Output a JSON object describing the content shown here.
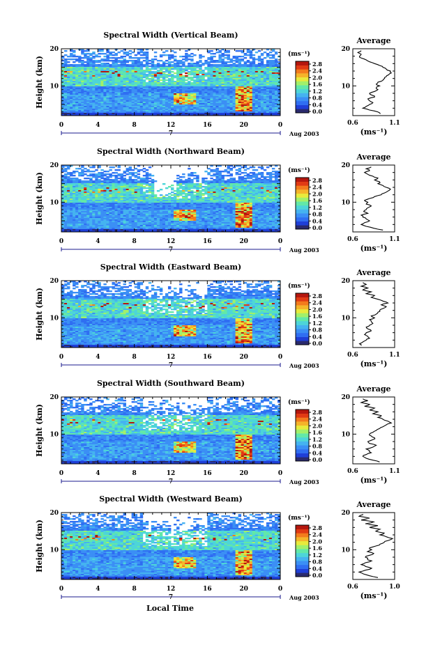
{
  "chart_data": [
    {
      "type": "heatmap",
      "title": "Spectral Width (Vertical Beam)",
      "ylabel": "Height (km)",
      "xlim": [
        0,
        24
      ],
      "ylim": [
        2,
        20
      ],
      "x_ticks": [
        "0",
        "4",
        "8",
        "12",
        "16",
        "20",
        "0"
      ],
      "y_ticks": [
        "10",
        "20"
      ],
      "date_marker": "7",
      "date_label": "Aug 2003",
      "colorbar": {
        "unit": "(ms⁻¹)",
        "ticks": [
          "2.8",
          "2.4",
          "2.0",
          "1.6",
          "1.2",
          "0.8",
          "0.4",
          "0.0"
        ]
      },
      "average": {
        "title": "Average",
        "xlabel": "(ms⁻¹)",
        "x_ticks": [
          "0.6",
          "1.1"
        ],
        "xlim": [
          0.6,
          1.1
        ],
        "y_ticks": [
          "10",
          "20"
        ],
        "profile": [
          [
            0.93,
            2.5
          ],
          [
            0.9,
            3
          ],
          [
            0.8,
            3.5
          ],
          [
            0.72,
            4
          ],
          [
            0.76,
            4.5
          ],
          [
            0.8,
            5
          ],
          [
            0.84,
            5.5
          ],
          [
            0.8,
            6
          ],
          [
            0.78,
            6.5
          ],
          [
            0.86,
            7
          ],
          [
            0.83,
            7.5
          ],
          [
            0.8,
            8
          ],
          [
            0.86,
            8.5
          ],
          [
            0.9,
            9
          ],
          [
            0.88,
            9.5
          ],
          [
            0.92,
            10
          ],
          [
            0.88,
            10.5
          ],
          [
            0.9,
            11
          ],
          [
            0.96,
            11.5
          ],
          [
            0.98,
            12
          ],
          [
            1.0,
            12.5
          ],
          [
            1.03,
            13
          ],
          [
            1.06,
            13.5
          ],
          [
            1.05,
            14
          ],
          [
            1.0,
            14.5
          ],
          [
            0.96,
            15
          ],
          [
            0.92,
            15.5
          ],
          [
            0.86,
            16
          ],
          [
            0.8,
            16.5
          ],
          [
            0.76,
            17
          ],
          [
            0.7,
            17.5
          ],
          [
            0.68,
            18
          ],
          [
            0.7,
            18.5
          ],
          [
            0.66,
            19
          ],
          [
            0.7,
            19.5
          ]
        ]
      }
    },
    {
      "type": "heatmap",
      "title": "Spectral Width (Northward Beam)",
      "ylabel": "Height (km)",
      "xlim": [
        0,
        24
      ],
      "ylim": [
        2,
        20
      ],
      "x_ticks": [
        "0",
        "4",
        "8",
        "12",
        "16",
        "20",
        "0"
      ],
      "y_ticks": [
        "10",
        "20"
      ],
      "date_marker": "7",
      "date_label": "Aug 2003",
      "colorbar": {
        "unit": "(ms⁻¹)",
        "ticks": [
          "2.8",
          "2.4",
          "2.0",
          "1.6",
          "1.2",
          "0.8",
          "0.4",
          "0.0"
        ]
      },
      "average": {
        "title": "Average",
        "xlabel": "(ms⁻¹)",
        "x_ticks": [
          "0.6",
          "1.1"
        ],
        "xlim": [
          0.6,
          1.1
        ],
        "y_ticks": [
          "10",
          "20"
        ],
        "profile": [
          [
            0.96,
            2.5
          ],
          [
            0.85,
            3
          ],
          [
            0.76,
            3.5
          ],
          [
            0.7,
            4
          ],
          [
            0.74,
            4.5
          ],
          [
            0.8,
            5
          ],
          [
            0.76,
            5.5
          ],
          [
            0.72,
            6
          ],
          [
            0.7,
            6.5
          ],
          [
            0.78,
            7
          ],
          [
            0.73,
            7.5
          ],
          [
            0.76,
            8
          ],
          [
            0.78,
            8.5
          ],
          [
            0.82,
            9
          ],
          [
            0.76,
            9.5
          ],
          [
            0.78,
            10
          ],
          [
            0.74,
            10.5
          ],
          [
            0.8,
            11
          ],
          [
            0.86,
            11.5
          ],
          [
            0.94,
            12
          ],
          [
            0.98,
            12.5
          ],
          [
            1.02,
            13
          ],
          [
            1.05,
            13.5
          ],
          [
            1.0,
            14
          ],
          [
            0.96,
            14.5
          ],
          [
            0.9,
            15
          ],
          [
            0.92,
            15.5
          ],
          [
            0.86,
            16
          ],
          [
            0.9,
            16.5
          ],
          [
            0.84,
            17
          ],
          [
            0.78,
            17.5
          ],
          [
            0.74,
            18
          ],
          [
            0.8,
            18.5
          ],
          [
            0.76,
            19
          ],
          [
            0.82,
            19.5
          ]
        ]
      }
    },
    {
      "type": "heatmap",
      "title": "Spectral Width (Eastward Beam)",
      "ylabel": "Height (km)",
      "xlim": [
        0,
        24
      ],
      "ylim": [
        2,
        20
      ],
      "x_ticks": [
        "0",
        "4",
        "8",
        "12",
        "16",
        "20",
        "0"
      ],
      "y_ticks": [
        "10",
        "20"
      ],
      "date_marker": "7",
      "date_label": "Aug 2003",
      "colorbar": {
        "unit": "(ms⁻¹)",
        "ticks": [
          "2.8",
          "2.4",
          "2.0",
          "1.6",
          "1.2",
          "0.8",
          "0.4",
          "0.0"
        ]
      },
      "average": {
        "title": "Average",
        "xlabel": "(ms⁻¹)",
        "x_ticks": [
          "0.6",
          "1.1"
        ],
        "xlim": [
          0.6,
          1.1
        ],
        "y_ticks": [
          "10",
          "20"
        ],
        "profile": [
          [
            0.7,
            2.5
          ],
          [
            0.68,
            3
          ],
          [
            0.72,
            3.5
          ],
          [
            0.76,
            4
          ],
          [
            0.8,
            4.5
          ],
          [
            0.78,
            5
          ],
          [
            0.74,
            5.5
          ],
          [
            0.76,
            6
          ],
          [
            0.82,
            6.5
          ],
          [
            0.78,
            7
          ],
          [
            0.76,
            7.5
          ],
          [
            0.8,
            8
          ],
          [
            0.84,
            8.5
          ],
          [
            0.82,
            9
          ],
          [
            0.8,
            9.5
          ],
          [
            0.86,
            10
          ],
          [
            0.82,
            10.5
          ],
          [
            0.88,
            11
          ],
          [
            0.9,
            11.5
          ],
          [
            0.92,
            12
          ],
          [
            0.96,
            12.5
          ],
          [
            1.0,
            13
          ],
          [
            0.94,
            13.5
          ],
          [
            1.02,
            14
          ],
          [
            0.96,
            14.5
          ],
          [
            0.9,
            15
          ],
          [
            0.82,
            15.5
          ],
          [
            0.86,
            16
          ],
          [
            0.76,
            16.5
          ],
          [
            0.82,
            17
          ],
          [
            0.72,
            17.5
          ],
          [
            0.78,
            18
          ],
          [
            0.7,
            18.5
          ],
          [
            0.76,
            19
          ],
          [
            0.72,
            19.5
          ]
        ]
      }
    },
    {
      "type": "heatmap",
      "title": "Spectral Width (Southward Beam)",
      "ylabel": "Height (km)",
      "xlim": [
        0,
        24
      ],
      "ylim": [
        2,
        20
      ],
      "x_ticks": [
        "0",
        "4",
        "8",
        "12",
        "16",
        "20",
        "0"
      ],
      "y_ticks": [
        "10",
        "20"
      ],
      "date_marker": "7",
      "date_label": "Aug 2003",
      "colorbar": {
        "unit": "(ms⁻¹)",
        "ticks": [
          "2.8",
          "2.4",
          "2.0",
          "1.6",
          "1.2",
          "0.8",
          "0.4",
          "0.0"
        ]
      },
      "average": {
        "title": "Average",
        "xlabel": "(ms⁻¹)",
        "x_ticks": [
          "0.6",
          "1.1"
        ],
        "xlim": [
          0.6,
          1.1
        ],
        "y_ticks": [
          "10",
          "20"
        ],
        "profile": [
          [
            0.92,
            2.5
          ],
          [
            0.84,
            3
          ],
          [
            0.76,
            3.5
          ],
          [
            0.72,
            4
          ],
          [
            0.76,
            4.5
          ],
          [
            0.82,
            5
          ],
          [
            0.8,
            5.5
          ],
          [
            0.76,
            6
          ],
          [
            0.84,
            6.5
          ],
          [
            0.88,
            7
          ],
          [
            0.8,
            7.5
          ],
          [
            0.78,
            8
          ],
          [
            0.84,
            8.5
          ],
          [
            0.86,
            9
          ],
          [
            0.82,
            9.5
          ],
          [
            0.8,
            10
          ],
          [
            0.84,
            10.5
          ],
          [
            0.88,
            11
          ],
          [
            0.92,
            11.5
          ],
          [
            0.96,
            12
          ],
          [
            1.0,
            12.5
          ],
          [
            1.06,
            13
          ],
          [
            1.02,
            13.5
          ],
          [
            0.96,
            14
          ],
          [
            0.9,
            14.5
          ],
          [
            0.94,
            15
          ],
          [
            0.84,
            15.5
          ],
          [
            0.9,
            16
          ],
          [
            0.8,
            16.5
          ],
          [
            0.86,
            17
          ],
          [
            0.74,
            17.5
          ],
          [
            0.8,
            18
          ],
          [
            0.7,
            18.5
          ],
          [
            0.78,
            19
          ],
          [
            0.72,
            19.5
          ]
        ]
      }
    },
    {
      "type": "heatmap",
      "title": "Spectral Width (Westward Beam)",
      "ylabel": "Height (km)",
      "xlabel": "Local Time",
      "xlim": [
        0,
        24
      ],
      "ylim": [
        2,
        20
      ],
      "x_ticks": [
        "0",
        "4",
        "8",
        "12",
        "16",
        "20",
        "0"
      ],
      "y_ticks": [
        "10",
        "20"
      ],
      "date_marker": "7",
      "date_label": "Aug 2003",
      "colorbar": {
        "unit": "(ms⁻¹)",
        "ticks": [
          "2.8",
          "2.4",
          "2.0",
          "1.6",
          "1.2",
          "0.8",
          "0.4",
          "0.0"
        ]
      },
      "average": {
        "title": "Average",
        "xlabel": "(ms⁻¹)",
        "x_ticks": [
          "0.6",
          "1.0"
        ],
        "xlim": [
          0.6,
          1.0
        ],
        "y_ticks": [
          "10",
          "20"
        ],
        "profile": [
          [
            0.84,
            2.5
          ],
          [
            0.76,
            3
          ],
          [
            0.7,
            3.5
          ],
          [
            0.66,
            4
          ],
          [
            0.72,
            4.5
          ],
          [
            0.78,
            5
          ],
          [
            0.72,
            5.5
          ],
          [
            0.68,
            6
          ],
          [
            0.72,
            6.5
          ],
          [
            0.78,
            7
          ],
          [
            0.74,
            7.5
          ],
          [
            0.72,
            8
          ],
          [
            0.76,
            8.5
          ],
          [
            0.8,
            9
          ],
          [
            0.74,
            9.5
          ],
          [
            0.78,
            10
          ],
          [
            0.76,
            10.5
          ],
          [
            0.82,
            11
          ],
          [
            0.86,
            11.5
          ],
          [
            0.9,
            12
          ],
          [
            0.94,
            12.5
          ],
          [
            0.98,
            13
          ],
          [
            0.92,
            13.5
          ],
          [
            0.86,
            14
          ],
          [
            0.9,
            14.5
          ],
          [
            0.82,
            15
          ],
          [
            0.86,
            15.5
          ],
          [
            0.76,
            16
          ],
          [
            0.84,
            16.5
          ],
          [
            0.72,
            17
          ],
          [
            0.8,
            17.5
          ],
          [
            0.68,
            18
          ],
          [
            0.76,
            18.5
          ],
          [
            0.66,
            19
          ],
          [
            0.7,
            19.5
          ]
        ]
      }
    }
  ],
  "colormap": [
    "#2a2a6e",
    "#1f3fd8",
    "#2f6ef2",
    "#3b8ff5",
    "#45b3f0",
    "#4dd5d8",
    "#62e8a8",
    "#a2f06a",
    "#e8ea3c",
    "#f5b42a",
    "#f37b1d",
    "#e13a14",
    "#b5170e"
  ]
}
